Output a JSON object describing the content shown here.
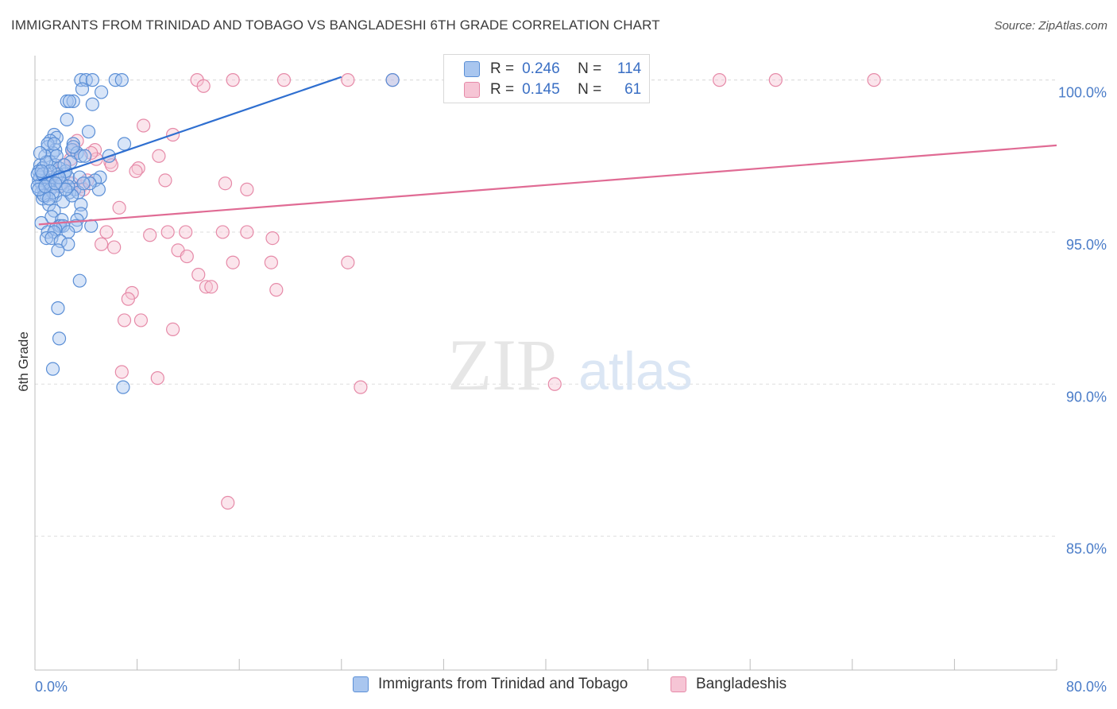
{
  "header": {
    "title": "IMMIGRANTS FROM TRINIDAD AND TOBAGO VS BANGLADESHI 6TH GRADE CORRELATION CHART",
    "source": "Source: ZipAtlas.com"
  },
  "watermark": {
    "zip": "ZIP",
    "atlas": "atlas"
  },
  "stats": {
    "rows": [
      {
        "r_label": "R =",
        "r": "0.246",
        "n_label": "N =",
        "n": "114"
      },
      {
        "r_label": "R =",
        "r": "0.145",
        "n_label": "N =",
        "n": "61"
      }
    ]
  },
  "chart_data": {
    "type": "scatter",
    "title": "IMMIGRANTS FROM TRINIDAD AND TOBAGO VS BANGLADESHI 6TH GRADE CORRELATION CHART",
    "xlabel": "",
    "ylabel": "6th Grade",
    "xlim": [
      0,
      80
    ],
    "ylim": [
      80.6,
      100.8
    ],
    "x_tick_labels": [
      "0.0%",
      "80.0%"
    ],
    "y_ticks": [
      85,
      90,
      95,
      100
    ],
    "y_tick_labels": [
      "85.0%",
      "90.0%",
      "95.0%",
      "100.0%"
    ],
    "grid": true,
    "legend_position": "bottom",
    "colors": {
      "blue_fill": "#a9c6ef",
      "blue_stroke": "#5b8fd6",
      "blue_line": "#2f6fd0",
      "pink_fill": "#f6c5d5",
      "pink_stroke": "#e68aa8",
      "pink_line": "#e06b94",
      "axis_text": "#4a7cc8",
      "grid": "#dddddd"
    },
    "series": [
      {
        "name": "Immigrants from Trinidad and Tobago",
        "r": 0.246,
        "n": 114,
        "trend": [
          [
            0.3,
            96.7
          ],
          [
            24.0,
            100.1
          ]
        ],
        "points": [
          [
            3.6,
            100
          ],
          [
            4.0,
            100
          ],
          [
            4.5,
            100
          ],
          [
            6.3,
            100
          ],
          [
            6.8,
            100
          ],
          [
            28.0,
            100
          ],
          [
            3.7,
            99.7
          ],
          [
            5.2,
            99.6
          ],
          [
            2.5,
            99.3
          ],
          [
            3.0,
            99.3
          ],
          [
            2.7,
            99.3
          ],
          [
            4.5,
            99.2
          ],
          [
            2.5,
            98.7
          ],
          [
            4.2,
            98.3
          ],
          [
            1.5,
            98.2
          ],
          [
            1.7,
            98.1
          ],
          [
            1.2,
            98.0
          ],
          [
            3.0,
            97.9
          ],
          [
            7.0,
            97.9
          ],
          [
            1.0,
            97.8
          ],
          [
            1.6,
            97.7
          ],
          [
            2.9,
            97.7
          ],
          [
            3.3,
            97.6
          ],
          [
            1.4,
            97.6
          ],
          [
            0.8,
            97.5
          ],
          [
            3.6,
            97.5
          ],
          [
            5.8,
            97.5
          ],
          [
            1.2,
            97.3
          ],
          [
            2.8,
            97.3
          ],
          [
            0.4,
            97.2
          ],
          [
            1.6,
            97.2
          ],
          [
            0.6,
            97.1
          ],
          [
            1.9,
            97.1
          ],
          [
            0.3,
            97.0
          ],
          [
            2.3,
            96.9
          ],
          [
            0.4,
            96.8
          ],
          [
            1.1,
            96.8
          ],
          [
            2.6,
            96.8
          ],
          [
            3.5,
            96.8
          ],
          [
            5.1,
            96.8
          ],
          [
            0.3,
            96.7
          ],
          [
            0.8,
            96.7
          ],
          [
            1.3,
            96.7
          ],
          [
            4.7,
            96.7
          ],
          [
            0.5,
            96.6
          ],
          [
            1.0,
            96.6
          ],
          [
            1.5,
            96.5
          ],
          [
            2.0,
            96.5
          ],
          [
            0.7,
            96.4
          ],
          [
            1.2,
            96.4
          ],
          [
            3.1,
            96.4
          ],
          [
            5.0,
            96.4
          ],
          [
            0.5,
            96.3
          ],
          [
            2.7,
            96.3
          ],
          [
            3.4,
            96.3
          ],
          [
            0.9,
            96.2
          ],
          [
            1.6,
            96.2
          ],
          [
            0.6,
            96.1
          ],
          [
            2.2,
            96.0
          ],
          [
            1.1,
            95.9
          ],
          [
            3.6,
            95.9
          ],
          [
            1.5,
            95.7
          ],
          [
            3.6,
            95.6
          ],
          [
            1.3,
            95.5
          ],
          [
            2.1,
            95.4
          ],
          [
            3.3,
            95.4
          ],
          [
            0.5,
            95.3
          ],
          [
            1.9,
            95.2
          ],
          [
            2.0,
            95.2
          ],
          [
            2.2,
            95.2
          ],
          [
            3.2,
            95.2
          ],
          [
            4.4,
            95.2
          ],
          [
            1.6,
            95.1
          ],
          [
            1.0,
            95.0
          ],
          [
            1.5,
            95.0
          ],
          [
            2.6,
            95.0
          ],
          [
            0.9,
            94.8
          ],
          [
            1.3,
            94.8
          ],
          [
            2.0,
            94.7
          ],
          [
            2.6,
            94.6
          ],
          [
            1.8,
            94.4
          ],
          [
            3.5,
            93.4
          ],
          [
            1.8,
            92.5
          ],
          [
            1.9,
            91.5
          ],
          [
            1.4,
            90.5
          ],
          [
            6.9,
            89.9
          ],
          [
            4.3,
            96.6
          ],
          [
            2.4,
            97.0
          ],
          [
            1.8,
            96.9
          ],
          [
            0.2,
            96.9
          ],
          [
            0.9,
            97.3
          ],
          [
            2.1,
            96.6
          ],
          [
            3.9,
            97.5
          ],
          [
            1.0,
            97.9
          ],
          [
            0.2,
            96.5
          ],
          [
            0.6,
            96.9
          ],
          [
            1.4,
            96.3
          ],
          [
            2.9,
            96.2
          ],
          [
            0.4,
            97.6
          ],
          [
            3.0,
            97.8
          ],
          [
            1.7,
            97.5
          ],
          [
            2.3,
            97.2
          ],
          [
            0.7,
            96.2
          ],
          [
            1.2,
            97.0
          ],
          [
            2.6,
            96.5
          ],
          [
            0.3,
            96.4
          ],
          [
            3.8,
            96.6
          ],
          [
            1.9,
            96.8
          ],
          [
            0.8,
            96.5
          ],
          [
            1.5,
            97.9
          ],
          [
            2.4,
            96.4
          ],
          [
            0.5,
            97.0
          ],
          [
            1.1,
            96.1
          ],
          [
            1.6,
            96.6
          ]
        ]
      },
      {
        "name": "Bangladeshis",
        "r": 0.145,
        "n": 61,
        "trend": [
          [
            0.3,
            95.25
          ],
          [
            80.0,
            97.85
          ]
        ],
        "points": [
          [
            12.7,
            100
          ],
          [
            15.5,
            100
          ],
          [
            19.5,
            100
          ],
          [
            24.5,
            100
          ],
          [
            28.0,
            100
          ],
          [
            53.6,
            100
          ],
          [
            58.0,
            100
          ],
          [
            65.7,
            100
          ],
          [
            13.2,
            99.8
          ],
          [
            8.5,
            98.5
          ],
          [
            10.8,
            98.2
          ],
          [
            3.3,
            98.0
          ],
          [
            3.0,
            97.7
          ],
          [
            4.7,
            97.7
          ],
          [
            9.7,
            97.5
          ],
          [
            4.8,
            97.4
          ],
          [
            2.8,
            97.4
          ],
          [
            5.9,
            97.3
          ],
          [
            8.1,
            97.1
          ],
          [
            10.2,
            96.7
          ],
          [
            14.9,
            96.6
          ],
          [
            16.6,
            96.4
          ],
          [
            3.6,
            96.5
          ],
          [
            4.1,
            96.7
          ],
          [
            6.6,
            95.8
          ],
          [
            5.6,
            95.0
          ],
          [
            9.0,
            94.9
          ],
          [
            10.4,
            95.0
          ],
          [
            11.8,
            95.0
          ],
          [
            14.7,
            95.0
          ],
          [
            16.6,
            95.0
          ],
          [
            18.6,
            94.8
          ],
          [
            5.2,
            94.6
          ],
          [
            6.2,
            94.5
          ],
          [
            11.2,
            94.4
          ],
          [
            11.9,
            94.2
          ],
          [
            15.5,
            94.0
          ],
          [
            18.5,
            94.0
          ],
          [
            24.5,
            94.0
          ],
          [
            12.8,
            93.6
          ],
          [
            13.4,
            93.2
          ],
          [
            13.8,
            93.2
          ],
          [
            18.9,
            93.1
          ],
          [
            7.6,
            93.0
          ],
          [
            7.3,
            92.8
          ],
          [
            7.0,
            92.1
          ],
          [
            8.3,
            92.1
          ],
          [
            10.8,
            91.8
          ],
          [
            6.8,
            90.4
          ],
          [
            9.6,
            90.2
          ],
          [
            25.5,
            89.9
          ],
          [
            40.7,
            90.0
          ],
          [
            15.1,
            86.1
          ],
          [
            1.2,
            96.8
          ],
          [
            2.2,
            97.2
          ],
          [
            4.4,
            97.6
          ],
          [
            3.8,
            96.4
          ],
          [
            6.0,
            97.2
          ],
          [
            2.9,
            96.6
          ],
          [
            7.9,
            97.0
          ],
          [
            1.9,
            96.5
          ]
        ]
      }
    ]
  }
}
